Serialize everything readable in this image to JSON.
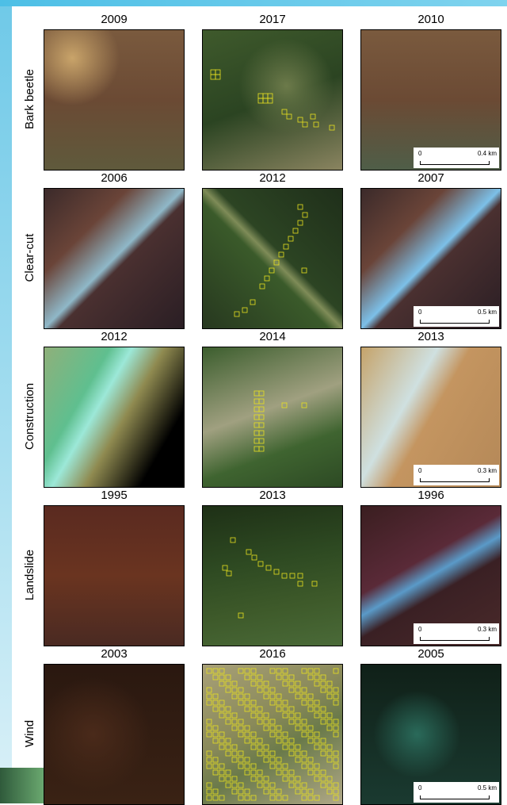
{
  "rows": [
    {
      "label": "Bark beetle",
      "panels": [
        {
          "year": "2009"
        },
        {
          "year": "2017"
        },
        {
          "year": "2010"
        }
      ],
      "scale_bar": {
        "start": "0",
        "end": "0.4 km"
      }
    },
    {
      "label": "Clear-cut",
      "panels": [
        {
          "year": "2006"
        },
        {
          "year": "2012"
        },
        {
          "year": "2007"
        }
      ],
      "scale_bar": {
        "start": "0",
        "end": "0.5 km"
      }
    },
    {
      "label": "Construction",
      "panels": [
        {
          "year": "2012"
        },
        {
          "year": "2014"
        },
        {
          "year": "2013"
        }
      ],
      "scale_bar": {
        "start": "0",
        "end": "0.3 km"
      }
    },
    {
      "label": "Landslide",
      "panels": [
        {
          "year": "1995"
        },
        {
          "year": "2013"
        },
        {
          "year": "1996"
        }
      ],
      "scale_bar": {
        "start": "0",
        "end": "0.3 km"
      }
    },
    {
      "label": "Wind",
      "panels": [
        {
          "year": "2003"
        },
        {
          "year": "2016"
        },
        {
          "year": "2005"
        }
      ],
      "scale_bar": {
        "start": "0",
        "end": "0.5 km"
      }
    }
  ]
}
